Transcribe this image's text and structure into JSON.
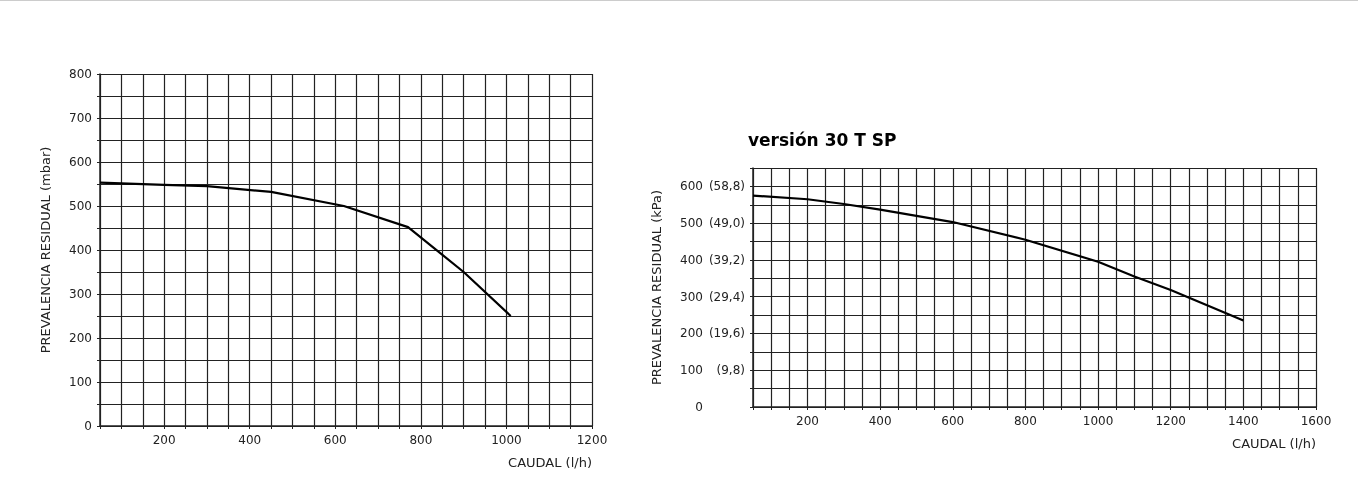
{
  "chart_data": [
    {
      "type": "line",
      "xlabel": "CAUDAL (l/h)",
      "ylabel": "PREVALENCIA RESIDUAL (mbar)",
      "grid": true,
      "x": [
        50,
        200,
        300,
        450,
        620,
        770,
        900,
        1010
      ],
      "series": [
        {
          "color": "#000000",
          "values": [
            553,
            548,
            545,
            532,
            500,
            452,
            350,
            250
          ]
        }
      ],
      "xlim": [
        50,
        1200
      ],
      "xticks": [
        {
          "value": 50,
          "label": null
        },
        {
          "value": 100,
          "label": null
        },
        {
          "value": 150,
          "label": null
        },
        200,
        {
          "value": 250,
          "label": null
        },
        {
          "value": 300,
          "label": null
        },
        {
          "value": 350,
          "label": null
        },
        400,
        {
          "value": 450,
          "label": null
        },
        {
          "value": 500,
          "label": null
        },
        {
          "value": 550,
          "label": null
        },
        600,
        {
          "value": 650,
          "label": null
        },
        {
          "value": 700,
          "label": null
        },
        {
          "value": 750,
          "label": null
        },
        800,
        {
          "value": 850,
          "label": null
        },
        {
          "value": 900,
          "label": null
        },
        {
          "value": 950,
          "label": null
        },
        1000,
        {
          "value": 1050,
          "label": null
        },
        {
          "value": 1100,
          "label": null
        },
        {
          "value": 1150,
          "label": null
        },
        1200
      ],
      "ylim": [
        0,
        800
      ],
      "yticks": [
        0,
        {
          "value": 50,
          "label": null
        },
        100,
        {
          "value": 150,
          "label": null
        },
        200,
        {
          "value": 250,
          "label": null
        },
        300,
        {
          "value": 350,
          "label": null
        },
        400,
        {
          "value": 450,
          "label": null
        },
        500,
        {
          "value": 550,
          "label": null
        },
        600,
        {
          "value": 650,
          "label": null
        },
        700,
        {
          "value": 750,
          "label": null
        },
        800
      ]
    },
    {
      "type": "line",
      "title": "versión 30 T SP",
      "xlabel": "CAUDAL (l/h)",
      "ylabel": "PREVALENCIA RESIDUAL (kPa)",
      "grid": true,
      "x": [
        50,
        200,
        300,
        400,
        600,
        800,
        1000,
        1100,
        1200,
        1400
      ],
      "series": [
        {
          "color": "#000000",
          "values": [
            575,
            565,
            552,
            537,
            503,
            455,
            395,
            355,
            318,
            235
          ]
        }
      ],
      "xlim": [
        50,
        1600
      ],
      "xticks": [
        {
          "value": 50,
          "label": null
        },
        {
          "value": 100,
          "label": null
        },
        {
          "value": 150,
          "label": null
        },
        200,
        {
          "value": 250,
          "label": null
        },
        {
          "value": 300,
          "label": null
        },
        {
          "value": 350,
          "label": null
        },
        400,
        {
          "value": 450,
          "label": null
        },
        {
          "value": 500,
          "label": null
        },
        {
          "value": 550,
          "label": null
        },
        600,
        {
          "value": 650,
          "label": null
        },
        {
          "value": 700,
          "label": null
        },
        {
          "value": 750,
          "label": null
        },
        800,
        {
          "value": 850,
          "label": null
        },
        {
          "value": 900,
          "label": null
        },
        {
          "value": 950,
          "label": null
        },
        1000,
        {
          "value": 1050,
          "label": null
        },
        {
          "value": 1100,
          "label": null
        },
        {
          "value": 1150,
          "label": null
        },
        1200,
        {
          "value": 1250,
          "label": null
        },
        {
          "value": 1300,
          "label": null
        },
        {
          "value": 1350,
          "label": null
        },
        1400,
        {
          "value": 1450,
          "label": null
        },
        {
          "value": 1500,
          "label": null
        },
        {
          "value": 1550,
          "label": null
        },
        1600
      ],
      "ylim": [
        0,
        650
      ],
      "yticks": [
        0,
        {
          "value": 50,
          "label": null
        },
        100,
        {
          "value": 150,
          "label": null
        },
        200,
        {
          "value": 250,
          "label": null
        },
        300,
        {
          "value": 350,
          "label": null
        },
        400,
        {
          "value": 450,
          "label": null
        },
        500,
        {
          "value": 550,
          "label": null
        },
        600,
        {
          "value": 650,
          "label": null
        }
      ],
      "y2lim": [
        0,
        63.7
      ],
      "y2ticks": [
        {
          "value": 9.8,
          "label": "(9,8)"
        },
        {
          "value": 19.6,
          "label": "(19,6)"
        },
        {
          "value": 29.4,
          "label": "(29,4)"
        },
        {
          "value": 39.2,
          "label": "(39,2)"
        },
        {
          "value": 49.0,
          "label": "(49,0)"
        },
        {
          "value": 58.8,
          "label": "(58,8)"
        }
      ]
    }
  ]
}
